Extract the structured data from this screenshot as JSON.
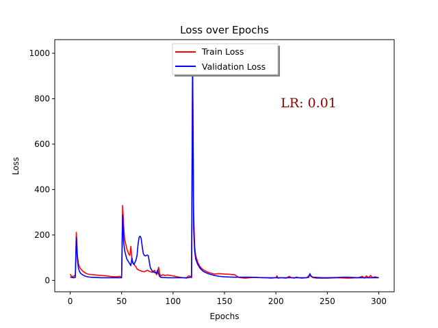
{
  "chart_data": {
    "type": "line",
    "title": "Loss over Epochs",
    "xlabel": "Epochs",
    "ylabel": "Loss",
    "xlim": [
      -15,
      315
    ],
    "ylim": [
      -50,
      1060
    ],
    "xticks": [
      0,
      50,
      100,
      150,
      200,
      250,
      300
    ],
    "yticks": [
      0,
      200,
      400,
      600,
      800,
      1000
    ],
    "grid": false,
    "legend_position": "top-center",
    "annotation": {
      "text": "LR: 0.01",
      "color": "#8b0000"
    },
    "series": [
      {
        "name": "Train Loss",
        "color": "#ff0000",
        "points": [
          [
            0,
            28
          ],
          [
            1,
            20
          ],
          [
            2,
            18
          ],
          [
            3,
            17
          ],
          [
            4,
            20
          ],
          [
            5,
            24
          ],
          [
            6,
            212
          ],
          [
            7,
            110
          ],
          [
            8,
            75
          ],
          [
            9,
            60
          ],
          [
            10,
            52
          ],
          [
            12,
            42
          ],
          [
            14,
            35
          ],
          [
            16,
            30
          ],
          [
            18,
            27
          ],
          [
            20,
            26
          ],
          [
            25,
            24
          ],
          [
            30,
            22
          ],
          [
            35,
            20
          ],
          [
            40,
            17
          ],
          [
            45,
            16
          ],
          [
            48,
            18
          ],
          [
            49,
            17
          ],
          [
            50,
            15
          ],
          [
            51,
            330
          ],
          [
            52,
            240
          ],
          [
            53,
            180
          ],
          [
            55,
            140
          ],
          [
            57,
            115
          ],
          [
            58,
            110
          ],
          [
            59,
            150
          ],
          [
            60,
            90
          ],
          [
            61,
            80
          ],
          [
            62,
            70
          ],
          [
            63,
            65
          ],
          [
            64,
            60
          ],
          [
            65,
            50
          ],
          [
            67,
            45
          ],
          [
            70,
            40
          ],
          [
            72,
            38
          ],
          [
            75,
            45
          ],
          [
            77,
            40
          ],
          [
            80,
            35
          ],
          [
            82,
            45
          ],
          [
            84,
            25
          ],
          [
            85,
            35
          ],
          [
            86,
            58
          ],
          [
            87,
            30
          ],
          [
            88,
            20
          ],
          [
            90,
            25
          ],
          [
            92,
            22
          ],
          [
            95,
            24
          ],
          [
            100,
            20
          ],
          [
            105,
            15
          ],
          [
            110,
            12
          ],
          [
            113,
            10
          ],
          [
            115,
            20
          ],
          [
            117,
            18
          ],
          [
            118,
            12
          ],
          [
            119,
            940
          ],
          [
            120,
            300
          ],
          [
            121,
            150
          ],
          [
            122,
            110
          ],
          [
            124,
            80
          ],
          [
            126,
            62
          ],
          [
            128,
            52
          ],
          [
            130,
            45
          ],
          [
            133,
            38
          ],
          [
            136,
            33
          ],
          [
            140,
            28
          ],
          [
            145,
            30
          ],
          [
            150,
            28
          ],
          [
            155,
            27
          ],
          [
            160,
            25
          ],
          [
            162,
            18
          ],
          [
            165,
            12
          ],
          [
            170,
            10
          ],
          [
            175,
            12
          ],
          [
            180,
            14
          ],
          [
            185,
            12
          ],
          [
            190,
            12
          ],
          [
            195,
            10
          ],
          [
            200,
            12
          ],
          [
            201,
            20
          ],
          [
            202,
            10
          ],
          [
            205,
            12
          ],
          [
            210,
            10
          ],
          [
            213,
            18
          ],
          [
            215,
            12
          ],
          [
            218,
            10
          ],
          [
            220,
            15
          ],
          [
            222,
            12
          ],
          [
            225,
            10
          ],
          [
            230,
            12
          ],
          [
            233,
            26
          ],
          [
            234,
            18
          ],
          [
            236,
            12
          ],
          [
            240,
            10
          ],
          [
            250,
            10
          ],
          [
            260,
            12
          ],
          [
            270,
            10
          ],
          [
            280,
            12
          ],
          [
            284,
            18
          ],
          [
            286,
            10
          ],
          [
            288,
            20
          ],
          [
            290,
            12
          ],
          [
            292,
            22
          ],
          [
            294,
            12
          ],
          [
            296,
            16
          ],
          [
            300,
            12
          ]
        ]
      },
      {
        "name": "Validation Loss",
        "color": "#0000ff",
        "points": [
          [
            0,
            15
          ],
          [
            1,
            14
          ],
          [
            2,
            13
          ],
          [
            3,
            12
          ],
          [
            4,
            12
          ],
          [
            5,
            14
          ],
          [
            6,
            190
          ],
          [
            7,
            95
          ],
          [
            8,
            55
          ],
          [
            9,
            40
          ],
          [
            10,
            32
          ],
          [
            12,
            25
          ],
          [
            14,
            20
          ],
          [
            16,
            17
          ],
          [
            18,
            15
          ],
          [
            20,
            14
          ],
          [
            25,
            13
          ],
          [
            30,
            12
          ],
          [
            35,
            12
          ],
          [
            40,
            12
          ],
          [
            45,
            12
          ],
          [
            48,
            12
          ],
          [
            50,
            12
          ],
          [
            51,
            290
          ],
          [
            52,
            170
          ],
          [
            53,
            130
          ],
          [
            55,
            95
          ],
          [
            57,
            80
          ],
          [
            59,
            65
          ],
          [
            60,
            100
          ],
          [
            61,
            75
          ],
          [
            62,
            70
          ],
          [
            63,
            80
          ],
          [
            64,
            90
          ],
          [
            65,
            110
          ],
          [
            66,
            160
          ],
          [
            67,
            190
          ],
          [
            68,
            195
          ],
          [
            69,
            185
          ],
          [
            70,
            150
          ],
          [
            71,
            120
          ],
          [
            72,
            110
          ],
          [
            73,
            108
          ],
          [
            75,
            112
          ],
          [
            76,
            108
          ],
          [
            77,
            80
          ],
          [
            78,
            55
          ],
          [
            80,
            40
          ],
          [
            82,
            35
          ],
          [
            84,
            32
          ],
          [
            85,
            45
          ],
          [
            86,
            28
          ],
          [
            87,
            18
          ],
          [
            88,
            14
          ],
          [
            90,
            13
          ],
          [
            95,
            12
          ],
          [
            100,
            12
          ],
          [
            110,
            12
          ],
          [
            115,
            12
          ],
          [
            118,
            15
          ],
          [
            119,
            1000
          ],
          [
            120,
            230
          ],
          [
            121,
            130
          ],
          [
            122,
            95
          ],
          [
            124,
            70
          ],
          [
            126,
            55
          ],
          [
            128,
            45
          ],
          [
            130,
            38
          ],
          [
            133,
            32
          ],
          [
            136,
            27
          ],
          [
            140,
            22
          ],
          [
            145,
            18
          ],
          [
            150,
            16
          ],
          [
            155,
            15
          ],
          [
            160,
            14
          ],
          [
            165,
            14
          ],
          [
            170,
            14
          ],
          [
            175,
            14
          ],
          [
            180,
            13
          ],
          [
            190,
            12
          ],
          [
            200,
            12
          ],
          [
            210,
            12
          ],
          [
            220,
            12
          ],
          [
            225,
            12
          ],
          [
            230,
            12
          ],
          [
            232,
            14
          ],
          [
            233,
            30
          ],
          [
            234,
            20
          ],
          [
            236,
            14
          ],
          [
            240,
            13
          ],
          [
            245,
            12
          ],
          [
            250,
            12
          ],
          [
            260,
            13
          ],
          [
            265,
            14
          ],
          [
            270,
            14
          ],
          [
            280,
            12
          ],
          [
            290,
            12
          ],
          [
            300,
            12
          ]
        ]
      }
    ]
  }
}
